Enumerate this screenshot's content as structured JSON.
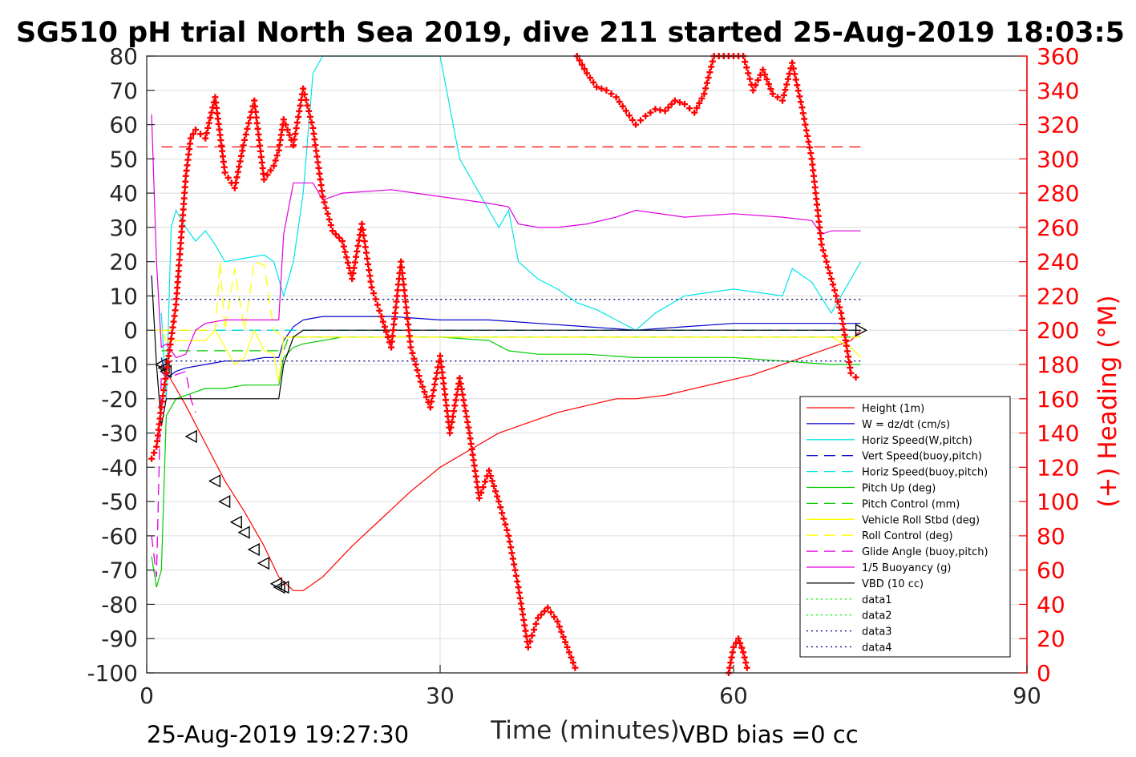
{
  "chart_data": {
    "type": "line",
    "title": "SG510 pH trial North Sea 2019, dive 211 started 25-Aug-2019 18:03:5",
    "xlabel": "Time (minutes)",
    "ylabel_right": "(+) Heading (°M)",
    "footer_left": "25-Aug-2019 19:27:30",
    "footer_right": "VBD bias =0 cc",
    "xlim": [
      0,
      90
    ],
    "ylim": [
      -100,
      80
    ],
    "ylim_right": [
      0,
      360
    ],
    "xticks": [
      "0",
      "30",
      "60",
      "90"
    ],
    "yticks": [
      "80",
      "70",
      "60",
      "50",
      "40",
      "30",
      "20",
      "10",
      "0",
      "-10",
      "-20",
      "-30",
      "-40",
      "-50",
      "-60",
      "-70",
      "-80",
      "-90",
      "-100"
    ],
    "yticks_right": [
      "360",
      "340",
      "320",
      "300",
      "280",
      "260",
      "240",
      "220",
      "200",
      "180",
      "160",
      "140",
      "120",
      "100",
      "80",
      "60",
      "40",
      "20",
      "0"
    ],
    "grid": true,
    "legend_position": "bottom-right",
    "colors": {
      "red": "#ff0000",
      "blue": "#0000cc",
      "cyan": "#00e5e5",
      "green": "#00cc00",
      "yellow": "#ffff00",
      "magenta": "#e000e0",
      "black": "#000000",
      "data_green": "#00ff00",
      "navy": "#00008b",
      "axis": "#262626",
      "grid": "#dcdcdc"
    },
    "series": [
      {
        "name": "Height (1m)",
        "color": "#ff0000",
        "dash": "",
        "x": [
          1.5,
          2,
          4,
          6,
          8,
          10,
          12,
          13.5,
          15,
          16,
          18,
          21,
          24,
          27,
          30,
          33,
          36,
          39,
          42,
          45,
          48,
          50,
          53,
          56,
          59,
          62,
          64,
          66,
          68,
          70,
          72,
          73
        ],
        "y": [
          -10,
          -12,
          -22,
          -33,
          -44,
          -53,
          -63,
          -72,
          -76,
          -76,
          -72,
          -63,
          -55,
          -47,
          -40,
          -35,
          -30,
          -27,
          -24,
          -22,
          -20,
          -20,
          -19,
          -17,
          -15,
          -13,
          -11,
          -9,
          -7,
          -5,
          -3,
          0
        ]
      },
      {
        "name": "W = dz/dt (cm/s)",
        "color": "#0000cc",
        "dash": "",
        "x": [
          1.5,
          2,
          3,
          4,
          6,
          8,
          10,
          12,
          13.5,
          14,
          15,
          16,
          18,
          20,
          25,
          30,
          35,
          40,
          45,
          50,
          55,
          60,
          65,
          70,
          73
        ],
        "y": [
          -8,
          -14,
          -12,
          -11,
          -10,
          -9,
          -9,
          -8,
          -8,
          -3,
          1,
          3,
          4,
          4,
          4,
          3,
          3,
          2,
          1,
          0,
          1,
          2,
          2,
          2,
          2
        ]
      },
      {
        "name": "Horiz Speed(W,pitch)",
        "color": "#00e5e5",
        "dash": "",
        "x": [
          1.5,
          2,
          2.5,
          3,
          4,
          5,
          6,
          7,
          8,
          10,
          12,
          13,
          14,
          15,
          16,
          17,
          18,
          20,
          22,
          24,
          26,
          28,
          30,
          32,
          34,
          36,
          37,
          38,
          40,
          42,
          44,
          46,
          48,
          50,
          52,
          55,
          60,
          65,
          66,
          68,
          70,
          72,
          73
        ],
        "y": [
          5,
          -20,
          30,
          35,
          30,
          26,
          29,
          25,
          20,
          21,
          22,
          20,
          10,
          20,
          40,
          75,
          80,
          80,
          80,
          80,
          80,
          80,
          80,
          50,
          40,
          30,
          35,
          20,
          15,
          12,
          8,
          6,
          3,
          0,
          5,
          10,
          12,
          10,
          18,
          14,
          5,
          15,
          20
        ]
      },
      {
        "name": "Vert Speed(buoy,pitch)",
        "color": "#0000cc",
        "dash": "14,8",
        "x": [
          1.5,
          73
        ],
        "y": [
          0,
          0
        ]
      },
      {
        "name": "Horiz Speed(buoy,pitch)",
        "color": "#00e5e5",
        "dash": "14,8",
        "x": [
          1.5,
          73
        ],
        "y": [
          0,
          0
        ]
      },
      {
        "name": "Pitch Up (deg)",
        "color": "#00cc00",
        "dash": "",
        "x": [
          0.5,
          1,
          1.5,
          2,
          3,
          4,
          5,
          6,
          8,
          10,
          12,
          13.5,
          14,
          15,
          16,
          18,
          20,
          25,
          30,
          35,
          37,
          40,
          45,
          50,
          55,
          60,
          65,
          70,
          73
        ],
        "y": [
          -66,
          -75,
          -70,
          -25,
          -20,
          -19,
          -18,
          -17,
          -17,
          -16,
          -16,
          -16,
          -8,
          -5,
          -4,
          -3,
          -2,
          -2,
          -2,
          -3,
          -6,
          -7,
          -7,
          -8,
          -8,
          -8,
          -9,
          -10,
          -10
        ]
      },
      {
        "name": "Pitch Control (mm)",
        "color": "#00cc00",
        "dash": "14,8",
        "x": [
          1.5,
          14,
          14.5,
          73
        ],
        "y": [
          -6,
          -6,
          -2,
          -2
        ]
      },
      {
        "name": "Vehicle Roll Stbd (deg)",
        "color": "#ffff00",
        "dash": "",
        "x": [
          0.5,
          1.5,
          2,
          4,
          6,
          7,
          8,
          9,
          10,
          11,
          12,
          13,
          13.5,
          14,
          20,
          30,
          40,
          50,
          60,
          70,
          72,
          73
        ],
        "y": [
          0,
          0,
          -3,
          -3,
          -3,
          0,
          -5,
          -10,
          -8,
          0,
          -6,
          -7,
          -15,
          -2,
          -2,
          -2,
          -2,
          -2,
          -2,
          -2,
          -5,
          -8
        ]
      },
      {
        "name": "Roll Control (deg)",
        "color": "#ffff00",
        "dash": "14,8",
        "x": [
          1.5,
          7,
          7.5,
          8,
          9,
          10,
          11,
          12,
          13,
          14,
          30,
          73
        ],
        "y": [
          0,
          0,
          20,
          0,
          18,
          0,
          20,
          19,
          0,
          -2,
          -2,
          -2
        ]
      },
      {
        "name": "Glide Angle (buoy,pitch)",
        "color": "#e000e0",
        "dash": "14,8",
        "x": [
          0.5,
          1,
          1.5,
          2,
          3,
          4,
          4.5,
          5
        ],
        "y": [
          -60,
          -72,
          -12,
          -14,
          -13,
          -12,
          -20,
          -24
        ]
      },
      {
        "name": "1/5 Buoyancy (g)",
        "color": "#e000e0",
        "dash": "",
        "x": [
          0.5,
          1,
          1.5,
          2,
          3,
          4,
          5,
          6,
          8,
          10,
          12,
          13.5,
          14,
          15,
          17,
          18,
          20,
          25,
          30,
          35,
          37,
          38,
          40,
          42,
          45,
          48,
          50,
          55,
          60,
          65,
          68,
          69,
          70,
          73
        ],
        "y": [
          63,
          20,
          -5,
          -4,
          -8,
          -7,
          0,
          2,
          3,
          3,
          3,
          3,
          28,
          43,
          43,
          38,
          40,
          41,
          39,
          37,
          36,
          31,
          30,
          30,
          31,
          33,
          35,
          33,
          34,
          33,
          32,
          28,
          29,
          29
        ]
      },
      {
        "name": "VBD (10 cc)",
        "color": "#000000",
        "dash": "",
        "x": [
          0.5,
          1,
          1.5,
          2,
          3,
          6,
          10,
          13.5,
          14,
          15,
          16,
          20,
          30,
          40,
          50,
          60,
          70,
          73
        ],
        "y": [
          16,
          -10,
          -28,
          -20,
          -20,
          -20,
          -20,
          -20,
          -10,
          -2,
          0,
          0,
          0,
          0,
          0,
          0,
          0,
          0
        ]
      },
      {
        "name": "data1",
        "color": "#00ff00",
        "dash": "2,4",
        "x": [],
        "y": []
      },
      {
        "name": "data2",
        "color": "#00ff00",
        "dash": "2,4",
        "x": [],
        "y": []
      },
      {
        "name": "data3",
        "color": "#00008b",
        "dash": "2,4",
        "x": [
          1.5,
          73
        ],
        "y": [
          9,
          9
        ]
      },
      {
        "name": "data4",
        "color": "#00008b",
        "dash": "2,4",
        "x": [
          1.5,
          73
        ],
        "y": [
          -9,
          -9
        ]
      }
    ],
    "heading_reference": {
      "color": "#ff0000",
      "x": [
        1.5,
        73
      ],
      "y": [
        307,
        307
      ]
    },
    "heading": {
      "name": "(+) Heading (°M)",
      "color": "#ff0000",
      "x": [
        0.5,
        1,
        1.5,
        2,
        3,
        4,
        4.5,
        5,
        6,
        7,
        8,
        9,
        10,
        11,
        12,
        13,
        13.5,
        14,
        15,
        16,
        17,
        18,
        19,
        20,
        21,
        22,
        23,
        24,
        25,
        26,
        27,
        28,
        29,
        30,
        31,
        32,
        33,
        34,
        35,
        36,
        37,
        38,
        39,
        40,
        41,
        42,
        43,
        44
      ],
      "y": [
        125,
        132,
        155,
        175,
        215,
        290,
        312,
        317,
        312,
        336,
        292,
        283,
        311,
        334,
        288,
        296,
        305,
        323,
        308,
        341,
        318,
        278,
        258,
        252,
        230,
        262,
        225,
        208,
        190,
        240,
        190,
        170,
        155,
        185,
        140,
        172,
        140,
        102,
        118,
        100,
        80,
        50,
        15,
        32,
        38,
        30,
        15,
        0
      ]
    },
    "heading2": {
      "x": [
        44,
        45,
        46,
        47,
        48,
        49,
        50,
        51,
        52,
        53,
        54,
        55,
        56,
        57,
        58,
        59,
        60,
        61,
        62,
        63,
        64,
        65,
        66,
        67,
        68,
        69,
        70,
        71,
        72,
        73
      ],
      "y": [
        360,
        350,
        342,
        340,
        336,
        328,
        320,
        325,
        329,
        328,
        334,
        332,
        327,
        338,
        360,
        360,
        360,
        360,
        340,
        352,
        338,
        334,
        356,
        330,
        300,
        250,
        230,
        210,
        175,
        170
      ]
    },
    "heading3": {
      "x": [
        59.5,
        60,
        60.5,
        61,
        61.5
      ],
      "y": [
        0,
        15,
        20,
        12,
        0
      ]
    },
    "triangles": {
      "x": [
        1.5,
        1.8,
        2,
        4.6,
        7,
        8,
        9.2,
        10,
        11,
        12,
        13.3,
        13.6,
        14
      ],
      "y": [
        -10,
        -11,
        -12,
        -31,
        -44,
        -50,
        -56,
        -59,
        -64,
        -68,
        -74,
        -75,
        -75
      ]
    },
    "end_triangle": {
      "x": [
        73
      ],
      "y": [
        0
      ]
    }
  }
}
